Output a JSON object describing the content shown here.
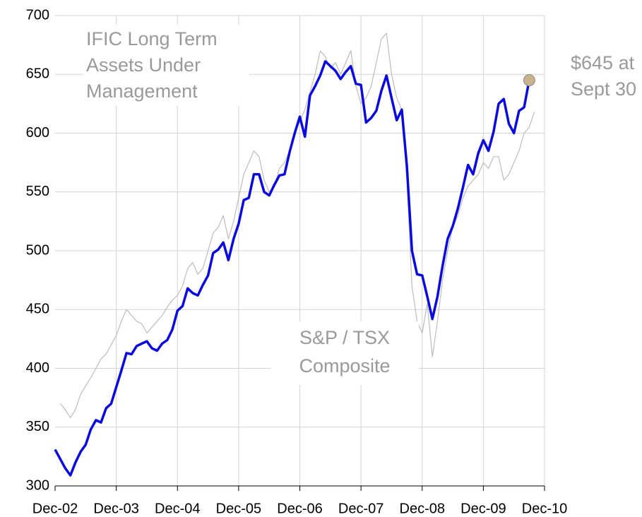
{
  "chart_data": {
    "type": "line",
    "x": [
      "2002-12",
      "2003-01",
      "2003-02",
      "2003-03",
      "2003-04",
      "2003-05",
      "2003-06",
      "2003-07",
      "2003-08",
      "2003-09",
      "2003-10",
      "2003-11",
      "2003-12",
      "2004-01",
      "2004-02",
      "2004-03",
      "2004-04",
      "2004-05",
      "2004-06",
      "2004-07",
      "2004-08",
      "2004-09",
      "2004-10",
      "2004-11",
      "2004-12",
      "2005-01",
      "2005-02",
      "2005-03",
      "2005-04",
      "2005-05",
      "2005-06",
      "2005-07",
      "2005-08",
      "2005-09",
      "2005-10",
      "2005-11",
      "2005-12",
      "2006-01",
      "2006-02",
      "2006-03",
      "2006-04",
      "2006-05",
      "2006-06",
      "2006-07",
      "2006-08",
      "2006-09",
      "2006-10",
      "2006-11",
      "2006-12",
      "2007-01",
      "2007-02",
      "2007-03",
      "2007-04",
      "2007-05",
      "2007-06",
      "2007-07",
      "2007-08",
      "2007-09",
      "2007-10",
      "2007-11",
      "2007-12",
      "2008-01",
      "2008-02",
      "2008-03",
      "2008-04",
      "2008-05",
      "2008-06",
      "2008-07",
      "2008-08",
      "2008-09",
      "2008-10",
      "2008-11",
      "2008-12",
      "2009-01",
      "2009-02",
      "2009-03",
      "2009-04",
      "2009-05",
      "2009-06",
      "2009-07",
      "2009-08",
      "2009-09",
      "2009-10",
      "2009-11",
      "2009-12",
      "2010-01",
      "2010-02",
      "2010-03",
      "2010-04",
      "2010-05",
      "2010-06",
      "2010-07",
      "2010-08",
      "2010-09",
      "2010-10"
    ],
    "series": [
      {
        "name": "IFIC Long Term Assets Under Management",
        "color": "#0a0ae0",
        "values": [
          331,
          323,
          315,
          309,
          320,
          329,
          335,
          348,
          356,
          354,
          366,
          370,
          384,
          398,
          413,
          412,
          419,
          421,
          423,
          417,
          415,
          421,
          424,
          433,
          449,
          453,
          468,
          464,
          462,
          471,
          479,
          498,
          501,
          507,
          492,
          510,
          523,
          543,
          545,
          565,
          565,
          550,
          547,
          556,
          564,
          565,
          584,
          600,
          614,
          597,
          632,
          640,
          649,
          661,
          657,
          653,
          646,
          652,
          657,
          642,
          641,
          609,
          613,
          619,
          636,
          649,
          630,
          611,
          620,
          572,
          500,
          480,
          479,
          461,
          442,
          461,
          487,
          510,
          521,
          536,
          554,
          573,
          565,
          583,
          594,
          585,
          601,
          625,
          629,
          608,
          600,
          619,
          622,
          645,
          null
        ]
      },
      {
        "name": "S&P / TSX Composite",
        "color": "#bdbdbd",
        "values": [
          null,
          370,
          365,
          358,
          365,
          378,
          385,
          392,
          400,
          408,
          412,
          420,
          428,
          440,
          450,
          445,
          440,
          438,
          430,
          435,
          440,
          445,
          452,
          458,
          462,
          470,
          485,
          490,
          480,
          485,
          500,
          515,
          520,
          530,
          510,
          525,
          545,
          565,
          575,
          585,
          580,
          560,
          550,
          555,
          570,
          575,
          585,
          600,
          610,
          620,
          635,
          650,
          670,
          665,
          655,
          660,
          650,
          660,
          670,
          640,
          625,
          630,
          640,
          660,
          680,
          685,
          650,
          630,
          620,
          560,
          470,
          440,
          430,
          455,
          410,
          440,
          475,
          500,
          520,
          530,
          545,
          555,
          560,
          565,
          575,
          570,
          580,
          580,
          560,
          565,
          575,
          585,
          600,
          605,
          618
        ]
      }
    ],
    "annotations": [
      {
        "lines": [
          "IFIC Long Term",
          "Assets Under",
          "Management"
        ]
      },
      {
        "lines": [
          "S&P / TSX",
          "Composite"
        ]
      },
      {
        "lines": [
          "$645 at",
          "Sept 30"
        ]
      }
    ],
    "marker_color": "#c9b38c",
    "xlim": [
      "2002-12",
      "2010-12"
    ],
    "xticks": [
      {
        "value": "2002-12",
        "label": "Dec-02"
      },
      {
        "value": "2003-12",
        "label": "Dec-03"
      },
      {
        "value": "2004-12",
        "label": "Dec-04"
      },
      {
        "value": "2005-12",
        "label": "Dec-05"
      },
      {
        "value": "2006-12",
        "label": "Dec-06"
      },
      {
        "value": "2007-12",
        "label": "Dec-07"
      },
      {
        "value": "2008-12",
        "label": "Dec-08"
      },
      {
        "value": "2009-12",
        "label": "Dec-09"
      },
      {
        "value": "2010-12",
        "label": "Dec-10"
      }
    ],
    "ylim": [
      300,
      700
    ],
    "yticks": [
      300,
      350,
      400,
      450,
      500,
      550,
      600,
      650,
      700
    ],
    "grid": true
  }
}
